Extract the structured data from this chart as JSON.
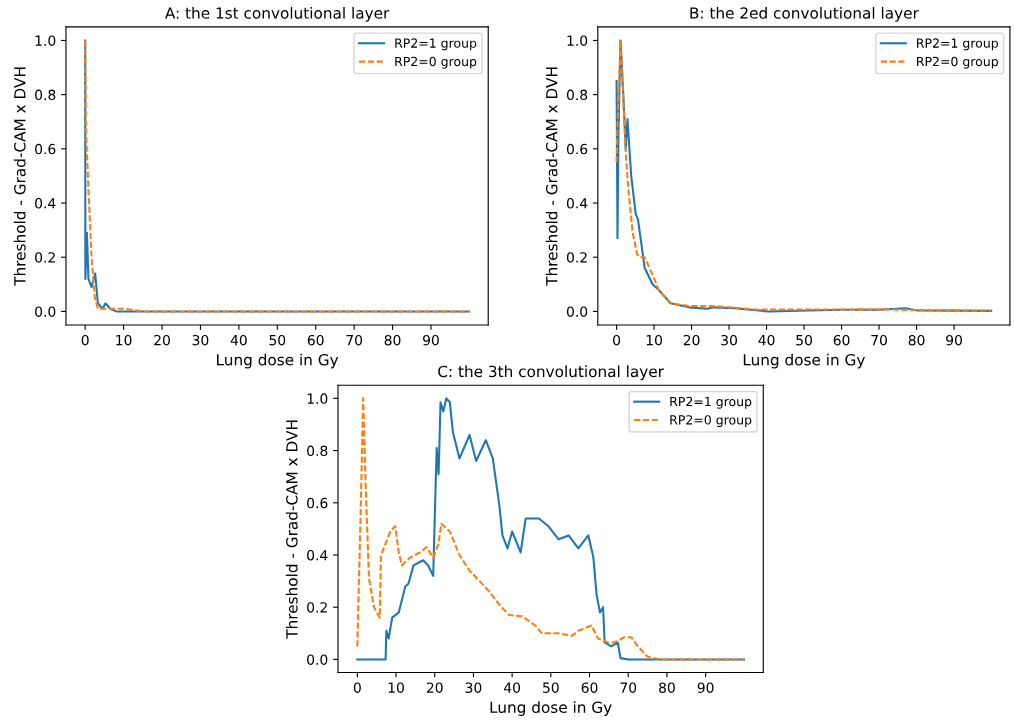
{
  "chart_data": [
    {
      "type": "line",
      "title": "A: the 1st convolutional layer",
      "xlabel": "Lung dose in Gy",
      "ylabel": "Threshold - Grad-CAM x DVH",
      "xlim": [
        -5,
        104.9
      ],
      "ylim": [
        -0.05,
        1.05
      ],
      "xticks": [
        0,
        10,
        20,
        30,
        40,
        50,
        60,
        70,
        80,
        90
      ],
      "yticks": [
        {
          "value": 0,
          "label": "0.0"
        },
        {
          "value": 0.2,
          "label": "0.2"
        },
        {
          "value": 0.4,
          "label": "0.4"
        },
        {
          "value": 0.6,
          "label": "0.6"
        },
        {
          "value": 0.8,
          "label": "0.8"
        },
        {
          "value": 1.0,
          "label": "1.0"
        }
      ],
      "legend": "top right",
      "grid": false,
      "series": [
        {
          "name": "RP2=1 group",
          "color": "#1f77b4",
          "line_style": "solid",
          "x": [
            0,
            0.05,
            0.45,
            0.85,
            1.66,
            2.6,
            3.3,
            4.5,
            5.3,
            6.5,
            8.1,
            20,
            50,
            99.9
          ],
          "values": [
            1.0,
            0.12,
            0.29,
            0.12,
            0.09,
            0.14,
            0.03,
            0.01,
            0.03,
            0.01,
            0.0,
            0.0,
            0.0,
            0.0
          ]
        },
        {
          "name": "RP2=0 group",
          "color": "#ff7f0e",
          "line_style": "dashed",
          "x": [
            0,
            0.2,
            0.85,
            1.66,
            2.5,
            3.3,
            5.7,
            10,
            15,
            30,
            99.9
          ],
          "values": [
            1.0,
            0.67,
            0.45,
            0.2,
            0.05,
            0.01,
            0.01,
            0.01,
            0.0,
            0.0,
            0.0
          ]
        }
      ]
    },
    {
      "type": "line",
      "title": "B: the 2ed convolutional layer",
      "xlabel": "Lung dose in Gy",
      "ylabel": "Threshold - Grad-CAM x DVH",
      "xlim": [
        -5,
        104.9
      ],
      "ylim": [
        -0.05,
        1.05
      ],
      "xticks": [
        0,
        10,
        20,
        30,
        40,
        50,
        60,
        70,
        80,
        90
      ],
      "yticks": [
        {
          "value": 0,
          "label": "0.0"
        },
        {
          "value": 0.2,
          "label": "0.2"
        },
        {
          "value": 0.4,
          "label": "0.4"
        },
        {
          "value": 0.6,
          "label": "0.6"
        },
        {
          "value": 0.8,
          "label": "0.8"
        },
        {
          "value": 1.0,
          "label": "1.0"
        }
      ],
      "legend": "top right",
      "grid": false,
      "series": [
        {
          "name": "RP2=1 group",
          "color": "#1f77b4",
          "line_style": "solid",
          "x": [
            0,
            0.24,
            0.49,
            1.05,
            1.86,
            2.43,
            2.9,
            3.9,
            5.1,
            5.7,
            7.5,
            9.6,
            11.2,
            14.4,
            19.3,
            24.2,
            25.8,
            31.5,
            40.4,
            60,
            70,
            77,
            80,
            99.9
          ],
          "values": [
            0.85,
            0.27,
            0.65,
            1.0,
            0.78,
            0.6,
            0.71,
            0.5,
            0.36,
            0.34,
            0.16,
            0.1,
            0.08,
            0.03,
            0.015,
            0.01,
            0.015,
            0.012,
            0.0,
            0.006,
            0.006,
            0.012,
            0.004,
            0.002
          ]
        },
        {
          "name": "RP2=0 group",
          "color": "#ff7f0e",
          "line_style": "dashed",
          "x": [
            0,
            0.24,
            1.05,
            1.6,
            2.43,
            3.08,
            4.3,
            5.5,
            6.3,
            7.5,
            9.6,
            11.2,
            14.4,
            19.3,
            25.8,
            37.2,
            60,
            70,
            80,
            99.9
          ],
          "values": [
            0.55,
            0.68,
            1.0,
            0.84,
            0.59,
            0.46,
            0.29,
            0.21,
            0.2,
            0.2,
            0.135,
            0.08,
            0.03,
            0.02,
            0.02,
            0.007,
            0.007,
            0.008,
            0.005,
            0.003
          ]
        }
      ]
    },
    {
      "type": "line",
      "title": "C: the 3th convolutional layer",
      "xlabel": "Lung dose in Gy",
      "ylabel": "Threshold - Grad-CAM x DVH",
      "xlim": [
        -5,
        104.9
      ],
      "ylim": [
        -0.05,
        1.05
      ],
      "xticks": [
        0,
        10,
        20,
        30,
        40,
        50,
        60,
        70,
        80,
        90
      ],
      "yticks": [
        {
          "value": 0,
          "label": "0.0"
        },
        {
          "value": 0.2,
          "label": "0.2"
        },
        {
          "value": 0.4,
          "label": "0.4"
        },
        {
          "value": 0.6,
          "label": "0.6"
        },
        {
          "value": 0.8,
          "label": "0.8"
        },
        {
          "value": 1.0,
          "label": "1.0"
        }
      ],
      "legend": "top right",
      "grid": false,
      "series": [
        {
          "name": "RP2=1 group",
          "color": "#1f77b4",
          "line_style": "solid",
          "x": [
            0,
            7.3,
            7.5,
            8.1,
            9,
            10.7,
            12.4,
            13.2,
            14.5,
            17,
            18.3,
            19.6,
            20,
            20.5,
            21,
            21.5,
            22.2,
            23,
            23.9,
            24.7,
            26.4,
            29,
            30.7,
            33.2,
            35,
            36.7,
            37.5,
            38.8,
            40,
            42.2,
            43.5,
            46.9,
            49.4,
            52,
            54.6,
            57.1,
            59.7,
            61,
            61.8,
            62.7,
            63.5,
            63.9,
            65.6,
            67.3,
            68,
            70,
            99.9
          ],
          "values": [
            0,
            0,
            0.11,
            0.08,
            0.16,
            0.18,
            0.28,
            0.29,
            0.36,
            0.38,
            0.36,
            0.32,
            0.54,
            0.81,
            0.71,
            0.985,
            0.95,
            1.0,
            0.985,
            0.87,
            0.77,
            0.86,
            0.76,
            0.84,
            0.77,
            0.59,
            0.475,
            0.425,
            0.49,
            0.41,
            0.54,
            0.54,
            0.51,
            0.46,
            0.475,
            0.425,
            0.475,
            0.39,
            0.25,
            0.18,
            0.2,
            0.065,
            0.05,
            0.065,
            0.005,
            0,
            0
          ]
        },
        {
          "name": "RP2=0 group",
          "color": "#ff7f0e",
          "line_style": "dashed",
          "x": [
            0,
            0.17,
            0.85,
            1.5,
            2.1,
            3,
            4.3,
            5.8,
            6.1,
            7.2,
            8.5,
            9.8,
            10.7,
            11.5,
            13.6,
            16.2,
            17.9,
            19.6,
            20.9,
            21.7,
            23.9,
            26.4,
            29,
            31.6,
            34.1,
            36.7,
            39.2,
            42.6,
            46,
            47.7,
            52,
            55.4,
            57.1,
            60.5,
            62.2,
            64.8,
            66.5,
            69,
            70.8,
            72.5,
            75,
            78.4,
            83.5,
            99.9
          ],
          "values": [
            0.05,
            0.16,
            0.56,
            1.0,
            0.69,
            0.31,
            0.2,
            0.16,
            0.4,
            0.44,
            0.49,
            0.51,
            0.41,
            0.36,
            0.39,
            0.41,
            0.43,
            0.39,
            0.44,
            0.52,
            0.49,
            0.4,
            0.34,
            0.3,
            0.26,
            0.21,
            0.17,
            0.165,
            0.13,
            0.1,
            0.1,
            0.09,
            0.11,
            0.13,
            0.08,
            0.065,
            0.065,
            0.085,
            0.085,
            0.05,
            0.01,
            0,
            0,
            0
          ]
        }
      ]
    }
  ]
}
